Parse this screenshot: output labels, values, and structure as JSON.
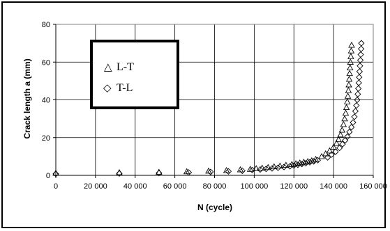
{
  "chart_data": {
    "type": "scatter",
    "xlabel": "N (cycle)",
    "ylabel": "Crack length a (mm)",
    "xlim": [
      0,
      160000
    ],
    "ylim": [
      0,
      80
    ],
    "x_ticks": [
      0,
      20000,
      40000,
      60000,
      80000,
      100000,
      120000,
      140000,
      160000
    ],
    "x_tick_labels": [
      "0",
      "20 000",
      "40 000",
      "60 000",
      "80 000",
      "100 000",
      "120 000",
      "140 000",
      "160 000"
    ],
    "y_ticks": [
      0,
      20,
      40,
      60,
      80
    ],
    "y_tick_labels": [
      "0",
      "20",
      "40",
      "60",
      "80"
    ],
    "grid": {
      "horizontal": true,
      "vertical": true
    },
    "legend_placement": "top-left",
    "series": [
      {
        "name": "L-T",
        "marker": "triangle",
        "points": [
          [
            0,
            1.2
          ],
          [
            32000,
            1.5
          ],
          [
            52000,
            1.7
          ],
          [
            66000,
            2.0
          ],
          [
            77000,
            2.3
          ],
          [
            86000,
            2.6
          ],
          [
            93000,
            3.0
          ],
          [
            98000,
            3.3
          ],
          [
            101000,
            3.6
          ],
          [
            104000,
            3.9
          ],
          [
            107000,
            4.2
          ],
          [
            110000,
            4.6
          ],
          [
            113000,
            5.0
          ],
          [
            116000,
            5.4
          ],
          [
            119000,
            5.8
          ],
          [
            121000,
            6.2
          ],
          [
            123000,
            6.6
          ],
          [
            125000,
            7.0
          ],
          [
            127000,
            7.4
          ],
          [
            129000,
            7.8
          ],
          [
            131000,
            8.5
          ],
          [
            134000,
            10.0
          ],
          [
            136000,
            11.5
          ],
          [
            138000,
            13.0
          ],
          [
            140000,
            15.0
          ],
          [
            141500,
            17.0
          ],
          [
            142500,
            19.0
          ],
          [
            143500,
            21.5
          ],
          [
            144300,
            24.0
          ],
          [
            145000,
            27.0
          ],
          [
            145600,
            30.0
          ],
          [
            146100,
            33.0
          ],
          [
            146500,
            36.0
          ],
          [
            146900,
            39.0
          ],
          [
            147200,
            42.0
          ],
          [
            147500,
            45.0
          ],
          [
            147700,
            48.0
          ],
          [
            147900,
            51.0
          ],
          [
            148100,
            54.0
          ],
          [
            148300,
            57.0
          ],
          [
            148500,
            60.0
          ],
          [
            148700,
            63.0
          ],
          [
            148900,
            66.0
          ],
          [
            149100,
            69.0
          ]
        ]
      },
      {
        "name": "T-L",
        "marker": "diamond",
        "points": [
          [
            0,
            0.8
          ],
          [
            32000,
            1.0
          ],
          [
            52000,
            1.2
          ],
          [
            67000,
            1.5
          ],
          [
            78000,
            1.8
          ],
          [
            87000,
            2.1
          ],
          [
            94000,
            2.4
          ],
          [
            99000,
            2.8
          ],
          [
            103000,
            3.1
          ],
          [
            106000,
            3.4
          ],
          [
            109000,
            3.7
          ],
          [
            112000,
            4.0
          ],
          [
            115000,
            4.4
          ],
          [
            118000,
            4.8
          ],
          [
            120000,
            5.2
          ],
          [
            122000,
            5.6
          ],
          [
            124000,
            6.0
          ],
          [
            126000,
            6.4
          ],
          [
            128000,
            6.9
          ],
          [
            130000,
            7.4
          ],
          [
            132000,
            8.0
          ],
          [
            137000,
            9.5
          ],
          [
            139000,
            11.0
          ],
          [
            141000,
            12.5
          ],
          [
            143000,
            14.5
          ],
          [
            144500,
            16.5
          ],
          [
            145800,
            18.5
          ],
          [
            147000,
            20.5
          ],
          [
            148000,
            23.0
          ],
          [
            149000,
            25.5
          ],
          [
            149800,
            28.0
          ],
          [
            150500,
            31.0
          ],
          [
            151000,
            34.0
          ],
          [
            151500,
            37.0
          ],
          [
            151900,
            40.0
          ],
          [
            152200,
            43.0
          ],
          [
            152500,
            46.0
          ],
          [
            152700,
            49.0
          ],
          [
            152900,
            52.0
          ],
          [
            153100,
            55.0
          ],
          [
            153300,
            58.0
          ],
          [
            153500,
            61.0
          ],
          [
            153700,
            64.0
          ],
          [
            153900,
            67.0
          ],
          [
            154000,
            70.0
          ]
        ]
      }
    ]
  }
}
